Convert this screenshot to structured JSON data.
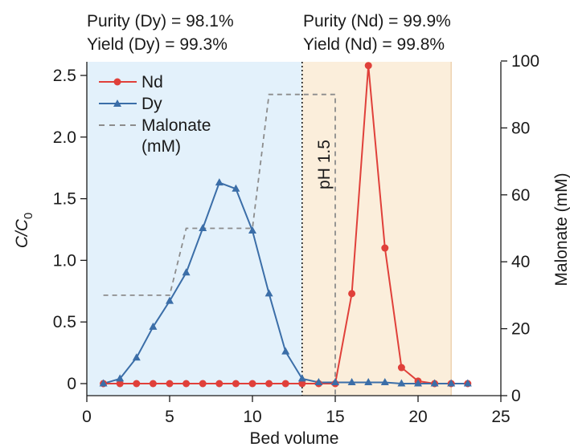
{
  "chart_data": {
    "type": "line",
    "xlabel": "Bed volume",
    "ylabel_main": "C/C",
    "ylabel_sub": "0",
    "ylabel_right": "Malonate (mM)",
    "xlim": [
      0,
      25
    ],
    "ylim_left": [
      0,
      2.6
    ],
    "ylim_right": [
      0,
      100
    ],
    "x_ticks": [
      "0",
      "5",
      "10",
      "15",
      "20",
      "25"
    ],
    "x_tick_values": [
      0,
      5,
      10,
      15,
      20,
      25
    ],
    "y_left_ticks": [
      "0",
      "0.5",
      "1.0",
      "1.5",
      "2.0",
      "2.5"
    ],
    "y_left_tick_values": [
      0,
      0.5,
      1.0,
      1.5,
      2.0,
      2.5
    ],
    "y_right_ticks": [
      "0",
      "20",
      "40",
      "60",
      "80",
      "100"
    ],
    "y_right_tick_values": [
      0,
      20,
      40,
      60,
      80,
      100
    ],
    "regions": [
      {
        "name": "dy-region",
        "x_start": 0,
        "x_end": 13,
        "color": "#e3f1fb"
      },
      {
        "name": "nd-region",
        "x_start": 13,
        "x_end": 22,
        "color": "#fbeedb"
      }
    ],
    "divider_x": 13,
    "ph_label": "pH 1.5",
    "annotations": {
      "dy_purity": "Purity (Dy) = 98.1%",
      "dy_yield": "Yield (Dy) = 99.3%",
      "nd_purity": "Purity (Nd) = 99.9%",
      "nd_yield": "Yield (Nd) = 99.8%"
    },
    "legend": {
      "position": "top-left",
      "entries": [
        {
          "label": "Nd",
          "series": "Nd"
        },
        {
          "label": "Dy",
          "series": "Dy"
        },
        {
          "label": "Malonate",
          "series": "Malonate"
        },
        {
          "label": "(mM)",
          "series": "Malonate"
        }
      ]
    },
    "series": [
      {
        "name": "Nd",
        "color": "#e0403a",
        "marker": "circle",
        "axis": "left",
        "x": [
          1,
          2,
          3,
          4,
          5,
          6,
          7,
          8,
          9,
          10,
          11,
          12,
          13,
          14,
          15,
          16,
          17,
          18,
          19,
          20,
          21,
          22,
          23
        ],
        "y": [
          0,
          0,
          0,
          0,
          0,
          0,
          0,
          0,
          0,
          0,
          0,
          0,
          0,
          0,
          0,
          0.73,
          2.58,
          1.1,
          0.13,
          0.02,
          0,
          0,
          0
        ]
      },
      {
        "name": "Dy",
        "color": "#3b6ea8",
        "marker": "triangle",
        "axis": "left",
        "x": [
          1,
          2,
          3,
          4,
          5,
          6,
          7,
          8,
          9,
          10,
          11,
          12,
          13,
          14,
          15,
          16,
          17,
          18,
          19,
          20,
          21,
          22,
          23
        ],
        "y": [
          0,
          0.04,
          0.21,
          0.46,
          0.67,
          0.9,
          1.26,
          1.63,
          1.58,
          1.24,
          0.73,
          0.26,
          0.04,
          0.01,
          0.01,
          0.01,
          0.01,
          0.01,
          0,
          0,
          0,
          0,
          0
        ]
      },
      {
        "name": "Malonate",
        "color": "#8c8c8c",
        "style": "dashed",
        "axis": "right",
        "x": [
          1,
          5,
          6,
          10,
          11,
          15,
          15
        ],
        "y": [
          30,
          30,
          50,
          50,
          90,
          90,
          0
        ]
      }
    ]
  }
}
